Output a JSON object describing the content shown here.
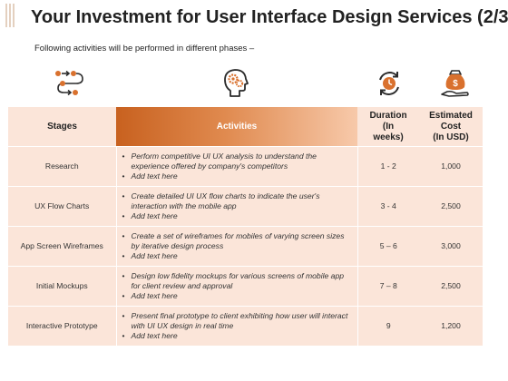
{
  "title": "Your Investment for User Interface Design Services (2/3)",
  "subtitle": "Following activities will be performed in different phases –",
  "icons": {
    "stages": "workflow-steps-icon",
    "activities": "head-gears-icon",
    "duration": "clock-cycle-icon",
    "cost": "money-bag-icon"
  },
  "colors": {
    "accent": "#d9712e",
    "row_bg": "#fbe5d9",
    "icon_dark": "#2b2b2b"
  },
  "table": {
    "headers": {
      "stages": "Stages",
      "activities": "Activities",
      "duration": [
        "Duration",
        "(In",
        "weeks)"
      ],
      "cost": [
        "Estimated",
        "Cost",
        "(In USD)"
      ]
    },
    "rows": [
      {
        "stage": "Research",
        "activities": [
          "Perform competitive UI UX analysis to understand the experience offered by company's competitors",
          "Add text here"
        ],
        "duration": "1 - 2",
        "cost": "1,000"
      },
      {
        "stage": "UX Flow Charts",
        "activities": [
          "Create detailed UI UX flow charts to indicate the user's interaction with the mobile app",
          "Add text here"
        ],
        "duration": "3 - 4",
        "cost": "2,500"
      },
      {
        "stage": "App Screen Wireframes",
        "activities": [
          "Create a set of wireframes for mobiles of varying screen sizes by iterative design process",
          "Add text here"
        ],
        "duration": "5 – 6",
        "cost": "3,000"
      },
      {
        "stage": "Initial Mockups",
        "activities": [
          "Design low fidelity mockups for various screens of mobile app for client review and approval",
          "Add text here"
        ],
        "duration": "7 – 8",
        "cost": "2,500"
      },
      {
        "stage": "Interactive Prototype",
        "activities": [
          "Present final prototype to client exhibiting how user will interact with  UI UX design in real time",
          "Add text here"
        ],
        "duration": "9",
        "cost": "1,200"
      }
    ]
  }
}
